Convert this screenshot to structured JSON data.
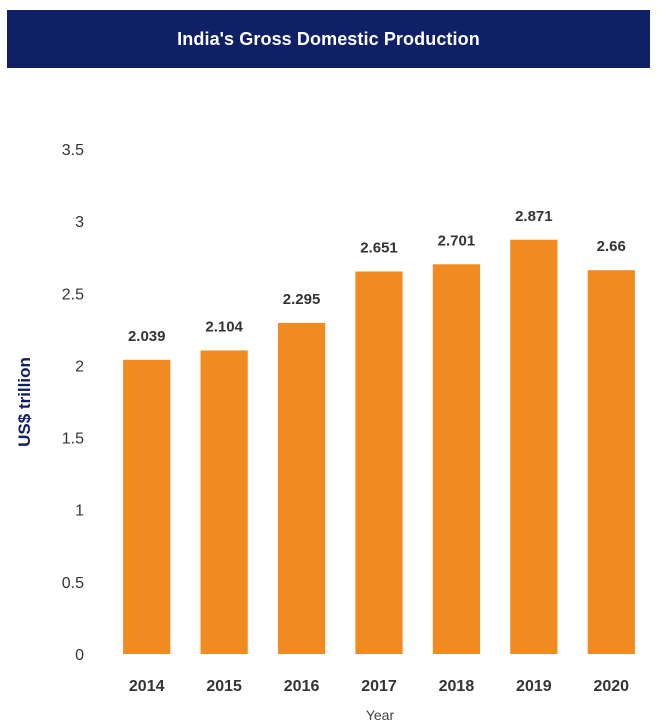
{
  "header": {
    "title": "India's Gross Domestic Production"
  },
  "colors": {
    "header_bg": "#0f2066",
    "bar": "#f28a22",
    "text": "#333333"
  },
  "chart_data": {
    "type": "bar",
    "title": "India's Gross Domestic Production",
    "xlabel": "Year",
    "ylabel": "US$ trillion",
    "categories": [
      "2014",
      "2015",
      "2016",
      "2017",
      "2018",
      "2019",
      "2020"
    ],
    "values": [
      2.039,
      2.104,
      2.295,
      2.651,
      2.701,
      2.871,
      2.66
    ],
    "data_labels": [
      "2.039",
      "2.104",
      "2.295",
      "2.651",
      "2.701",
      "2.871",
      "2.66"
    ],
    "ylim": [
      0,
      3.5
    ],
    "yticks": [
      0,
      0.5,
      1,
      1.5,
      2,
      2.5,
      3,
      3.5
    ],
    "ytick_labels": [
      "0",
      "0.5",
      "1",
      "1.5",
      "2",
      "2.5",
      "3",
      "3.5"
    ],
    "grid": false,
    "legend": "none"
  }
}
